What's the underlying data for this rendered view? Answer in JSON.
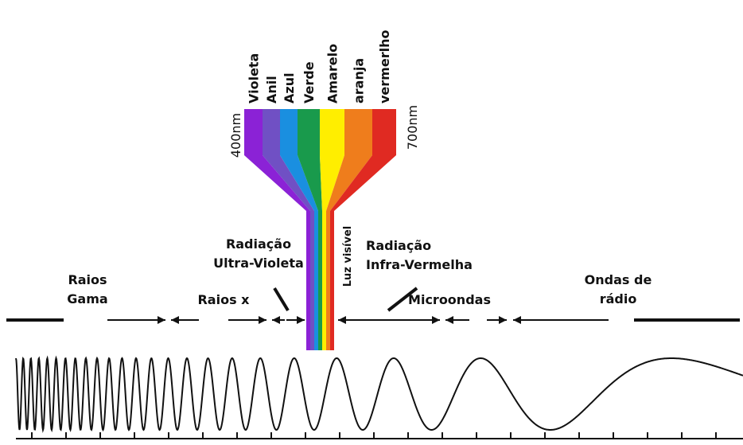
{
  "spectrum": {
    "bands": [
      {
        "label": "Violeta",
        "color": "#8b22d6"
      },
      {
        "label": "Anil",
        "color": "#7050c4"
      },
      {
        "label": "Azul",
        "color": "#1a8fe0"
      },
      {
        "label": "Verde",
        "color": "#199a4c"
      },
      {
        "label": "Amarelo",
        "color": "#ffee00"
      },
      {
        "label": "aranja",
        "color": "#ef7d1c"
      },
      {
        "label": "vermerlho",
        "color": "#e02a22"
      }
    ],
    "min_label": "400nm",
    "max_label": "700nm"
  },
  "regions": [
    {
      "lines": [
        "Raios",
        "Gama"
      ]
    },
    {
      "lines": [
        "Raios x"
      ]
    },
    {
      "lines": [
        "Radiação",
        "Ultra-Violeta"
      ]
    },
    {
      "lines": [
        "Luz visível"
      ]
    },
    {
      "lines": [
        "Radiação",
        "Infra-Vermelha"
      ]
    },
    {
      "lines": [
        "Microondas"
      ]
    },
    {
      "lines": [
        "Ondas de",
        "rádio"
      ]
    }
  ]
}
